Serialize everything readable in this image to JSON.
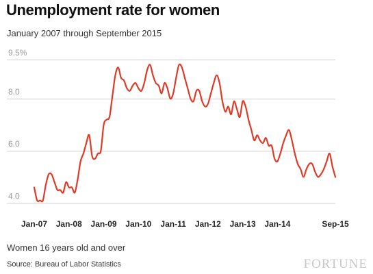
{
  "title": "Unemployment rate for women",
  "subtitle": "January 2007 through September 2015",
  "note": "Women 16 years old and over",
  "source": "Source: Bureau of Labor Statistics",
  "brand": "FORTUNE",
  "chart_data": {
    "type": "line",
    "title": "Unemployment rate for women",
    "subtitle": "January 2007 through September 2015",
    "xlabel": "",
    "ylabel": "",
    "ylim": [
      3.8,
      9.5
    ],
    "y_ticks": [
      {
        "value": 4.0,
        "label": "4.0"
      },
      {
        "value": 6.0,
        "label": "6.0"
      },
      {
        "value": 8.0,
        "label": "8.0"
      },
      {
        "value": 9.5,
        "label": "9.5%"
      }
    ],
    "x_ticks": [
      {
        "value": 0,
        "label": "Jan-07"
      },
      {
        "value": 12,
        "label": "Jan-08"
      },
      {
        "value": 24,
        "label": "Jan-09"
      },
      {
        "value": 36,
        "label": "Jan-10"
      },
      {
        "value": 48,
        "label": "Jan-11"
      },
      {
        "value": 60,
        "label": "Jan-12"
      },
      {
        "value": 72,
        "label": "Jan-13"
      },
      {
        "value": 84,
        "label": "Jan-14"
      },
      {
        "value": 104,
        "label": "Sep-15"
      }
    ],
    "grid": true,
    "line_color": "#e03a26",
    "series": [
      {
        "name": "",
        "x": [
          "Jan-07",
          "Feb-07",
          "Mar-07",
          "Apr-07",
          "May-07",
          "Jun-07",
          "Jul-07",
          "Aug-07",
          "Sep-07",
          "Oct-07",
          "Nov-07",
          "Dec-07",
          "Jan-08",
          "Feb-08",
          "Mar-08",
          "Apr-08",
          "May-08",
          "Jun-08",
          "Jul-08",
          "Aug-08",
          "Sep-08",
          "Oct-08",
          "Nov-08",
          "Dec-08",
          "Jan-09",
          "Feb-09",
          "Mar-09",
          "Apr-09",
          "May-09",
          "Jun-09",
          "Jul-09",
          "Aug-09",
          "Sep-09",
          "Oct-09",
          "Nov-09",
          "Dec-09",
          "Jan-10",
          "Feb-10",
          "Mar-10",
          "Apr-10",
          "May-10",
          "Jun-10",
          "Jul-10",
          "Aug-10",
          "Sep-10",
          "Oct-10",
          "Nov-10",
          "Dec-10",
          "Jan-11",
          "Feb-11",
          "Mar-11",
          "Apr-11",
          "May-11",
          "Jun-11",
          "Jul-11",
          "Aug-11",
          "Sep-11",
          "Oct-11",
          "Nov-11",
          "Dec-11",
          "Jan-12",
          "Feb-12",
          "Mar-12",
          "Apr-12",
          "May-12",
          "Jun-12",
          "Jul-12",
          "Aug-12",
          "Sep-12",
          "Oct-12",
          "Nov-12",
          "Dec-12",
          "Jan-13",
          "Feb-13",
          "Mar-13",
          "Apr-13",
          "May-13",
          "Jun-13",
          "Jul-13",
          "Aug-13",
          "Sep-13",
          "Oct-13",
          "Nov-13",
          "Dec-13",
          "Jan-14",
          "Feb-14",
          "Mar-14",
          "Apr-14",
          "May-14",
          "Jun-14",
          "Jul-14",
          "Aug-14",
          "Sep-14",
          "Oct-14",
          "Nov-14",
          "Dec-14",
          "Jan-15",
          "Feb-15",
          "Mar-15",
          "Apr-15",
          "May-15",
          "Jun-15",
          "Jul-15",
          "Aug-15",
          "Sep-15"
        ],
        "values": [
          4.6,
          4.1,
          4.1,
          4.1,
          4.7,
          5.1,
          5.1,
          4.8,
          4.5,
          4.5,
          4.4,
          4.8,
          4.6,
          4.6,
          4.4,
          4.9,
          5.6,
          5.9,
          6.3,
          6.6,
          5.8,
          5.7,
          5.9,
          6.0,
          7.0,
          7.2,
          7.3,
          8.1,
          8.9,
          9.2,
          8.8,
          8.7,
          8.4,
          8.3,
          8.5,
          8.6,
          8.4,
          8.3,
          8.6,
          9.1,
          9.3,
          8.9,
          8.6,
          8.5,
          8.2,
          8.6,
          8.4,
          8.0,
          8.2,
          8.8,
          9.3,
          9.2,
          8.8,
          8.4,
          8.0,
          7.9,
          8.3,
          8.3,
          7.9,
          7.7,
          7.8,
          8.2,
          8.6,
          8.9,
          8.6,
          7.9,
          7.5,
          7.7,
          7.4,
          7.9,
          7.6,
          7.3,
          7.9,
          7.7,
          7.2,
          6.8,
          6.4,
          6.6,
          6.4,
          6.3,
          6.5,
          6.2,
          6.2,
          5.7,
          5.6,
          5.9,
          6.3,
          6.6,
          6.8,
          6.4,
          5.9,
          5.5,
          5.3,
          5.0,
          5.3,
          5.5,
          5.5,
          5.2,
          5.0,
          5.1,
          5.3,
          5.6,
          5.9,
          5.4,
          5.0
        ]
      }
    ]
  }
}
